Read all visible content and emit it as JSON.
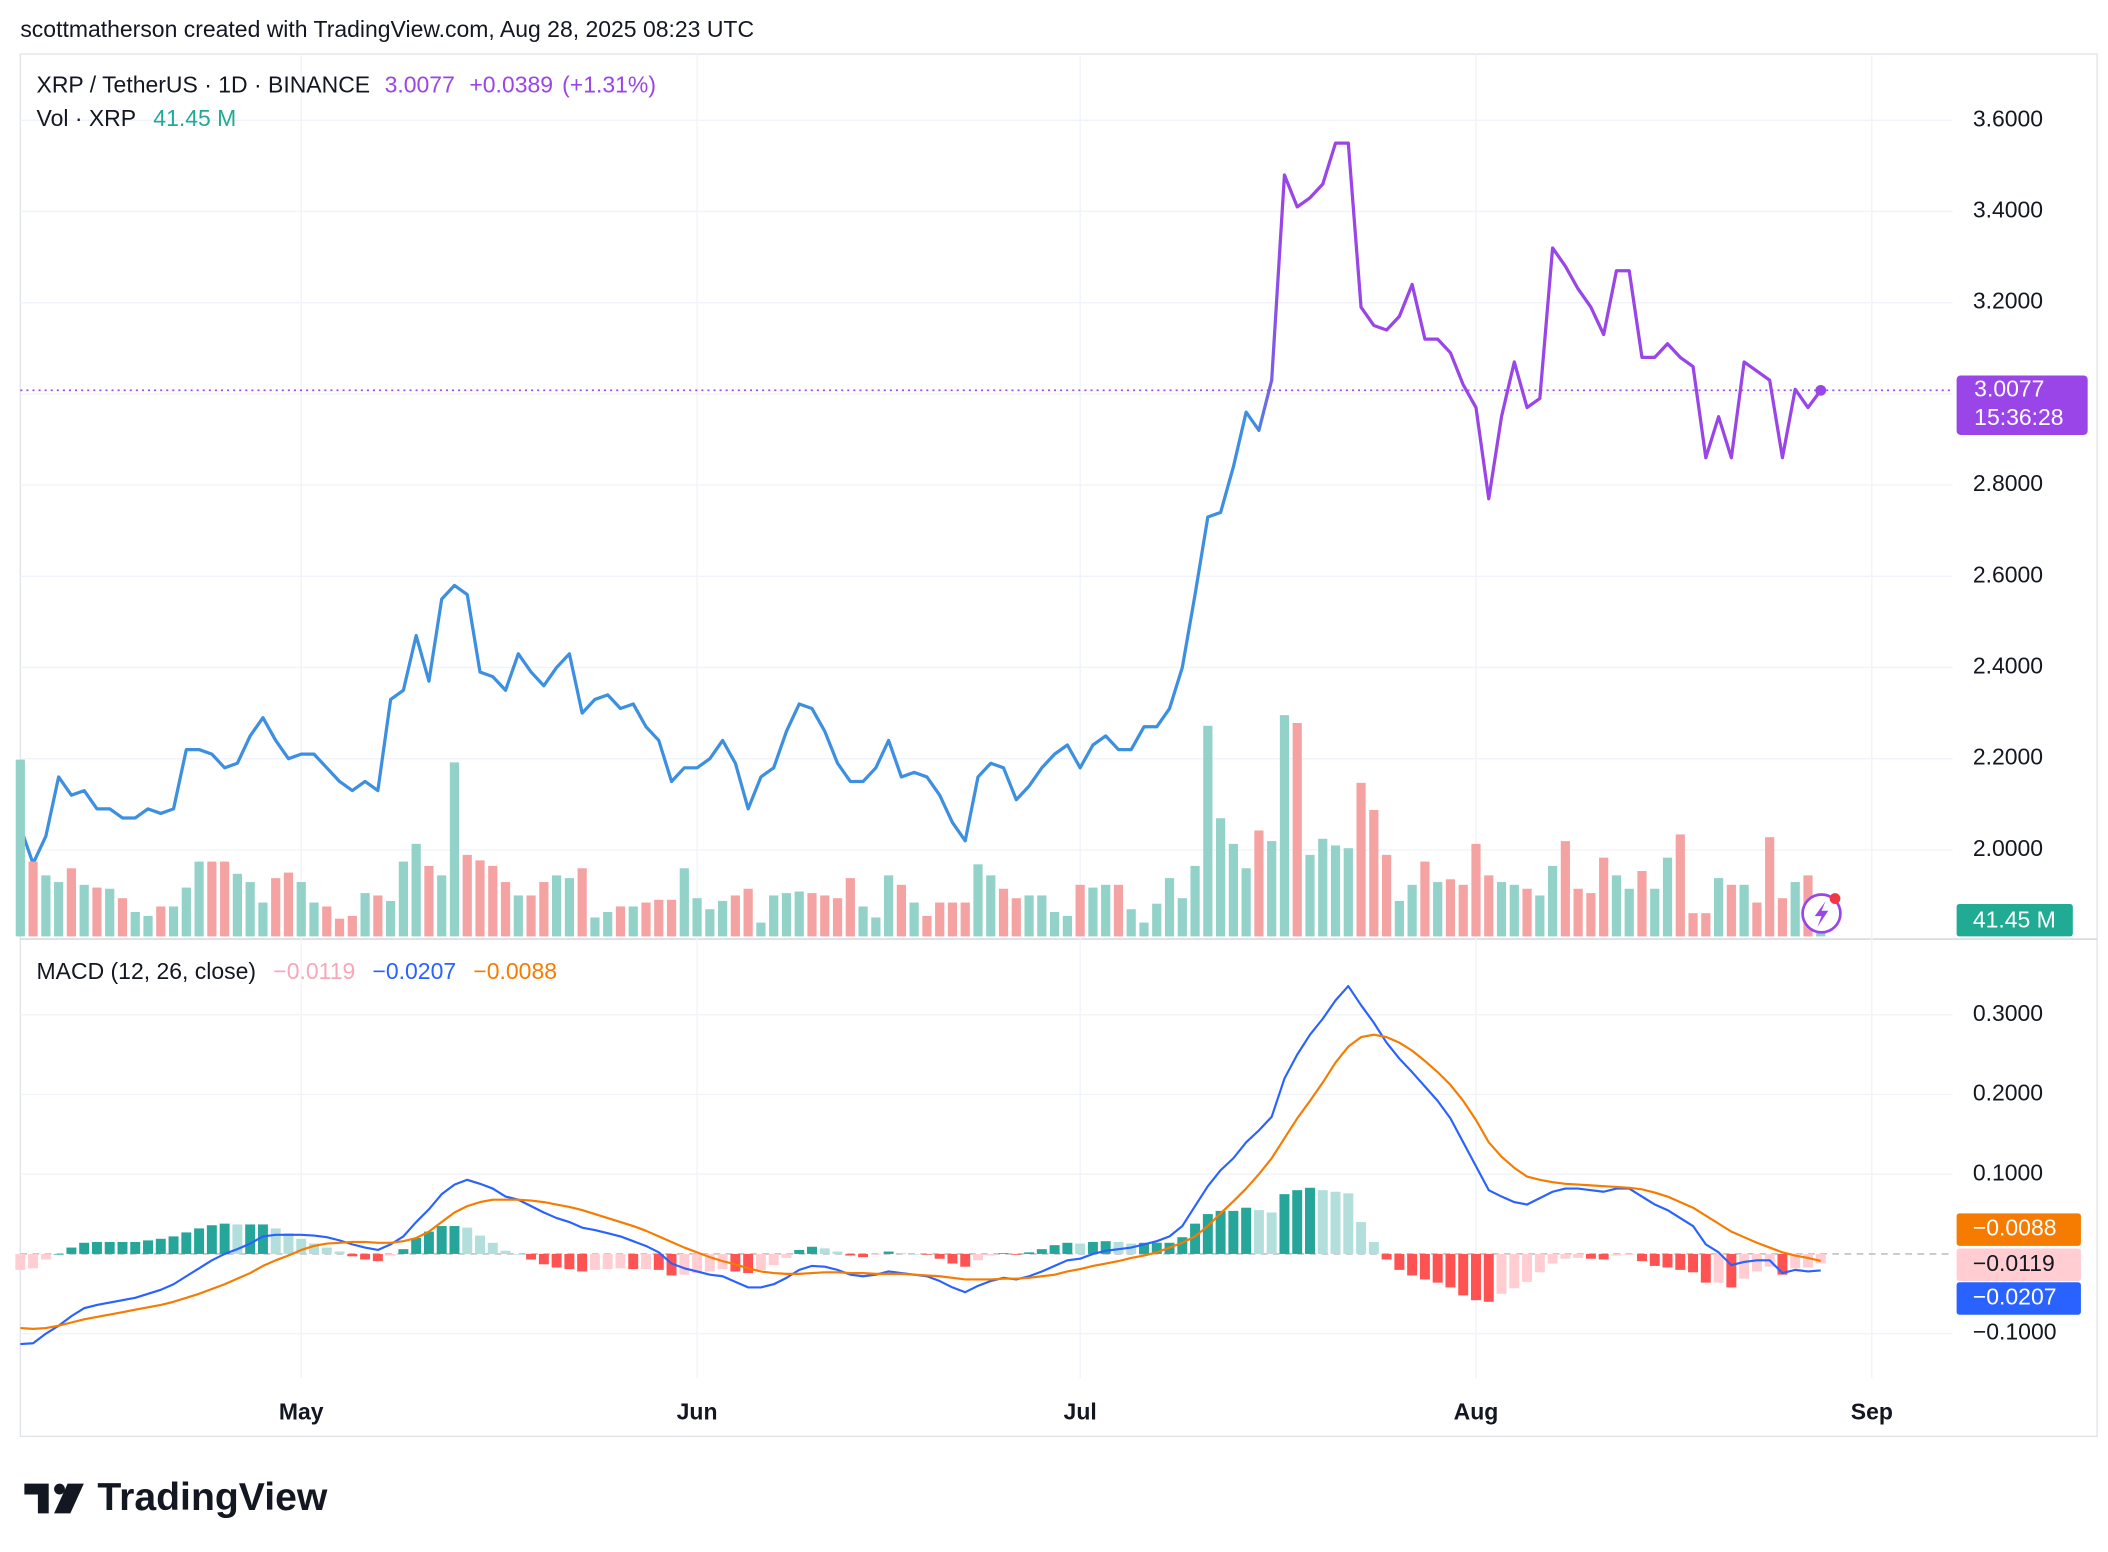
{
  "header": {
    "attribution": "scottmatherson created with TradingView.com, Aug 28, 2025 08:23 UTC"
  },
  "logo": "TradingView",
  "chart_data": [
    {
      "type": "line",
      "title": "XRP / TetherUS · 1D · BINANCE",
      "change": "+0.0389",
      "change_percent": "(+1.31%)",
      "countdown": "15:36:28",
      "color": [
        "#3d8fe0",
        "#9a45e8"
      ],
      "values": [
        2.05,
        1.97,
        2.03,
        2.16,
        2.12,
        2.13,
        2.09,
        2.09,
        2.07,
        2.07,
        2.09,
        2.08,
        2.09,
        2.22,
        2.22,
        2.21,
        2.18,
        2.19,
        2.25,
        2.29,
        2.24,
        2.2,
        2.21,
        2.21,
        2.18,
        2.15,
        2.13,
        2.15,
        2.13,
        2.33,
        2.35,
        2.47,
        2.37,
        2.55,
        2.58,
        2.56,
        2.39,
        2.38,
        2.35,
        2.43,
        2.39,
        2.36,
        2.4,
        2.43,
        2.3,
        2.33,
        2.34,
        2.31,
        2.32,
        2.27,
        2.24,
        2.15,
        2.18,
        2.18,
        2.2,
        2.24,
        2.19,
        2.09,
        2.16,
        2.18,
        2.26,
        2.32,
        2.31,
        2.26,
        2.19,
        2.15,
        2.15,
        2.18,
        2.24,
        2.16,
        2.17,
        2.16,
        2.12,
        2.06,
        2.02,
        2.16,
        2.19,
        2.18,
        2.11,
        2.14,
        2.18,
        2.21,
        2.23,
        2.18,
        2.23,
        2.25,
        2.22,
        2.22,
        2.27,
        2.27,
        2.31,
        2.4,
        2.56,
        2.73,
        2.74,
        2.84,
        2.96,
        2.92,
        3.03,
        3.48,
        3.41,
        3.43,
        3.46,
        3.55,
        3.55,
        3.19,
        3.15,
        3.14,
        3.17,
        3.24,
        3.12,
        3.12,
        3.09,
        3.02,
        2.97,
        2.77,
        2.95,
        3.07,
        2.97,
        2.99,
        3.32,
        3.28,
        3.23,
        3.19,
        3.13,
        3.27,
        3.27,
        3.08,
        3.08,
        3.11,
        3.08,
        3.06,
        2.86,
        2.95,
        2.86,
        3.07,
        3.05,
        3.03,
        2.86,
        3.01,
        2.97,
        3.0077,
        null,
        null,
        null,
        null
      ],
      "ylim": [
        1.8044,
        3.7452
      ],
      "yticks": [
        {
          "value": 2.0,
          "label": "2.0000"
        },
        {
          "value": 2.2,
          "label": "2.2000"
        },
        {
          "value": 2.4,
          "label": "2.4000"
        },
        {
          "value": 2.6,
          "label": "2.6000"
        },
        {
          "value": 2.8,
          "label": "2.8000"
        },
        {
          "value": 3.0,
          "label": "3.0000"
        },
        {
          "value": 3.2,
          "label": "3.2000"
        },
        {
          "value": 3.4,
          "label": "3.4000"
        },
        {
          "value": 3.6,
          "label": "3.6000"
        }
      ],
      "grid": true,
      "last_value_line": true
    },
    {
      "type": "bar",
      "title": "Vol · XRP",
      "last_value_label": "41.45 M",
      "colors": {
        "up": "#92d2c8",
        "down": "#f5a3a2"
      },
      "label_color": "#22ab94",
      "values": [
        449,
        190,
        155,
        138,
        173,
        131,
        124,
        121,
        97,
        62,
        52,
        76,
        76,
        124,
        190,
        190,
        190,
        159,
        138,
        86,
        148,
        162,
        138,
        86,
        76,
        45,
        52,
        110,
        104,
        90,
        190,
        235,
        179,
        155,
        442,
        207,
        193,
        179,
        138,
        104,
        104,
        138,
        155,
        148,
        173,
        48,
        62,
        76,
        76,
        86,
        93,
        93,
        173,
        97,
        69,
        90,
        104,
        121,
        35,
        104,
        110,
        114,
        110,
        104,
        97,
        148,
        76,
        48,
        155,
        131,
        86,
        52,
        86,
        86,
        86,
        183,
        155,
        121,
        97,
        104,
        104,
        62,
        52,
        131,
        124,
        131,
        131,
        69,
        35,
        83,
        148,
        97,
        179,
        535,
        300,
        235,
        173,
        269,
        242,
        562,
        542,
        207,
        248,
        231,
        224,
        390,
        321,
        207,
        90,
        131,
        190,
        138,
        145,
        131,
        235,
        155,
        138,
        131,
        121,
        104,
        179,
        242,
        121,
        110,
        200,
        155,
        121,
        166,
        121,
        200,
        259,
        59,
        59,
        148,
        131,
        131,
        86,
        252,
        97,
        138,
        155,
        41.45,
        null,
        null,
        null,
        null
      ]
    },
    {
      "type": "macd",
      "title": "MACD (12, 26, close)",
      "categories": [
        null,
        null,
        null,
        null,
        null,
        null,
        null,
        null,
        null,
        null,
        null,
        null,
        null,
        null,
        null,
        null,
        null,
        null,
        null,
        null,
        null,
        null,
        "May",
        null,
        null,
        null,
        null,
        null,
        null,
        null,
        null,
        null,
        null,
        null,
        null,
        null,
        null,
        null,
        null,
        null,
        null,
        null,
        null,
        null,
        null,
        null,
        null,
        null,
        null,
        null,
        null,
        null,
        null,
        "Jun",
        null,
        null,
        null,
        null,
        null,
        null,
        null,
        null,
        null,
        null,
        null,
        null,
        null,
        null,
        null,
        null,
        null,
        null,
        null,
        null,
        null,
        null,
        null,
        null,
        null,
        null,
        null,
        null,
        null,
        "Jul",
        null,
        null,
        null,
        null,
        null,
        null,
        null,
        null,
        null,
        null,
        null,
        null,
        null,
        null,
        null,
        null,
        null,
        null,
        null,
        null,
        null,
        null,
        null,
        null,
        null,
        null,
        null,
        null,
        null,
        null,
        "Aug",
        null,
        null,
        null,
        null,
        null,
        null,
        null,
        null,
        null,
        null,
        null,
        null,
        null,
        null,
        null,
        null,
        null,
        null,
        null,
        null,
        null,
        null,
        null,
        null,
        null,
        null,
        null,
        null,
        null,
        null,
        "Sep"
      ],
      "series": [
        {
          "type": "bar",
          "color": "#f7a8b8",
          "colors": [
            "#26a69a",
            "#b2dfdb",
            "#ffcdd2",
            "#ff5252"
          ],
          "last_value_label": "−0.0119",
          "values": [
            -0.02,
            -0.018,
            -0.007,
            0.0,
            0.008,
            0.014,
            0.015,
            0.015,
            0.015,
            0.015,
            0.017,
            0.019,
            0.022,
            0.027,
            0.032,
            0.036,
            0.038,
            0.037,
            0.037,
            0.037,
            0.032,
            0.026,
            0.019,
            0.013,
            0.008,
            0.003,
            -0.003,
            -0.007,
            -0.009,
            -0.002,
            0.006,
            0.02,
            0.028,
            0.035,
            0.035,
            0.033,
            0.023,
            0.014,
            0.004,
            0.0,
            -0.007,
            -0.013,
            -0.017,
            -0.019,
            -0.022,
            -0.02,
            -0.019,
            -0.018,
            -0.019,
            -0.019,
            -0.02,
            -0.027,
            -0.026,
            -0.024,
            -0.022,
            -0.019,
            -0.022,
            -0.024,
            -0.02,
            -0.014,
            -0.005,
            0.005,
            0.009,
            0.007,
            0.003,
            -0.002,
            -0.004,
            -0.001,
            0.003,
            0.001,
            0.0,
            -0.001,
            -0.006,
            -0.012,
            -0.016,
            -0.008,
            -0.002,
            0.001,
            -0.001,
            0.002,
            0.006,
            0.011,
            0.014,
            0.013,
            0.015,
            0.016,
            0.015,
            0.013,
            0.014,
            0.014,
            0.014,
            0.021,
            0.038,
            0.05,
            0.054,
            0.054,
            0.058,
            0.055,
            0.052,
            0.075,
            0.08,
            0.083,
            0.08,
            0.078,
            0.076,
            0.04,
            0.015,
            -0.007,
            -0.02,
            -0.027,
            -0.032,
            -0.036,
            -0.042,
            -0.052,
            -0.058,
            -0.06,
            -0.05,
            -0.043,
            -0.035,
            -0.023,
            -0.012,
            -0.006,
            -0.005,
            -0.006,
            -0.007,
            -0.002,
            -0.001,
            -0.009,
            -0.015,
            -0.017,
            -0.02,
            -0.023,
            -0.036,
            -0.036,
            -0.042,
            -0.031,
            -0.022,
            -0.016,
            -0.026,
            -0.018,
            -0.017,
            -0.0119,
            null,
            null,
            null,
            null
          ]
        },
        {
          "type": "line",
          "color": "#2962ff",
          "last_value_label": "−0.0207",
          "values": [
            -0.113,
            -0.112,
            -0.1,
            -0.09,
            -0.078,
            -0.068,
            -0.064,
            -0.061,
            -0.058,
            -0.055,
            -0.05,
            -0.045,
            -0.038,
            -0.028,
            -0.018,
            -0.008,
            0.0,
            0.006,
            0.013,
            0.022,
            0.024,
            0.024,
            0.024,
            0.023,
            0.021,
            0.017,
            0.012,
            0.008,
            0.005,
            0.012,
            0.022,
            0.04,
            0.056,
            0.075,
            0.087,
            0.093,
            0.088,
            0.082,
            0.072,
            0.068,
            0.06,
            0.052,
            0.045,
            0.04,
            0.033,
            0.03,
            0.026,
            0.022,
            0.016,
            0.01,
            0.002,
            -0.012,
            -0.018,
            -0.022,
            -0.026,
            -0.028,
            -0.035,
            -0.042,
            -0.042,
            -0.038,
            -0.03,
            -0.02,
            -0.015,
            -0.016,
            -0.02,
            -0.026,
            -0.028,
            -0.026,
            -0.022,
            -0.024,
            -0.026,
            -0.028,
            -0.034,
            -0.042,
            -0.048,
            -0.04,
            -0.034,
            -0.03,
            -0.032,
            -0.028,
            -0.022,
            -0.015,
            -0.008,
            -0.006,
            0.0,
            0.004,
            0.006,
            0.008,
            0.012,
            0.016,
            0.022,
            0.035,
            0.06,
            0.085,
            0.105,
            0.12,
            0.14,
            0.155,
            0.172,
            0.22,
            0.25,
            0.275,
            0.295,
            0.318,
            0.336,
            0.312,
            0.29,
            0.265,
            0.245,
            0.228,
            0.21,
            0.192,
            0.17,
            0.14,
            0.11,
            0.08,
            0.072,
            0.065,
            0.062,
            0.07,
            0.078,
            0.082,
            0.082,
            0.08,
            0.078,
            0.082,
            0.082,
            0.072,
            0.062,
            0.055,
            0.045,
            0.035,
            0.012,
            0.002,
            -0.014,
            -0.01,
            -0.008,
            -0.008,
            -0.024,
            -0.02,
            -0.022,
            -0.0207,
            null,
            null,
            null,
            null
          ]
        },
        {
          "type": "line",
          "color": "#f57c00",
          "last_value_label": "−0.0088",
          "values": [
            -0.093,
            -0.094,
            -0.093,
            -0.09,
            -0.086,
            -0.082,
            -0.079,
            -0.076,
            -0.073,
            -0.07,
            -0.067,
            -0.064,
            -0.06,
            -0.055,
            -0.05,
            -0.044,
            -0.038,
            -0.031,
            -0.024,
            -0.015,
            -0.008,
            -0.002,
            0.005,
            0.01,
            0.013,
            0.014,
            0.015,
            0.015,
            0.014,
            0.014,
            0.016,
            0.02,
            0.028,
            0.04,
            0.052,
            0.06,
            0.065,
            0.068,
            0.068,
            0.068,
            0.067,
            0.065,
            0.062,
            0.059,
            0.055,
            0.05,
            0.045,
            0.04,
            0.035,
            0.029,
            0.022,
            0.015,
            0.008,
            0.002,
            -0.004,
            -0.009,
            -0.013,
            -0.018,
            -0.022,
            -0.024,
            -0.025,
            -0.025,
            -0.024,
            -0.023,
            -0.023,
            -0.024,
            -0.024,
            -0.025,
            -0.025,
            -0.025,
            -0.026,
            -0.027,
            -0.028,
            -0.03,
            -0.032,
            -0.032,
            -0.032,
            -0.031,
            -0.031,
            -0.03,
            -0.028,
            -0.026,
            -0.022,
            -0.019,
            -0.015,
            -0.012,
            -0.009,
            -0.005,
            -0.002,
            0.002,
            0.008,
            0.014,
            0.022,
            0.035,
            0.051,
            0.066,
            0.082,
            0.1,
            0.12,
            0.145,
            0.17,
            0.192,
            0.215,
            0.24,
            0.26,
            0.272,
            0.275,
            0.272,
            0.265,
            0.255,
            0.242,
            0.228,
            0.212,
            0.192,
            0.168,
            0.14,
            0.122,
            0.108,
            0.097,
            0.093,
            0.09,
            0.088,
            0.087,
            0.086,
            0.085,
            0.084,
            0.083,
            0.081,
            0.077,
            0.072,
            0.065,
            0.058,
            0.048,
            0.038,
            0.028,
            0.021,
            0.014,
            0.008,
            0.002,
            -0.002,
            -0.005,
            -0.0088,
            null,
            null,
            null,
            null
          ]
        }
      ],
      "ylim": [
        -0.1559,
        0.3949
      ],
      "yticks": [
        {
          "value": -0.1,
          "label": "−0.1000"
        },
        {
          "value": 0.1,
          "label": "0.1000"
        },
        {
          "value": 0.2,
          "label": "0.2000"
        },
        {
          "value": 0.3,
          "label": "0.3000"
        }
      ],
      "grid": true
    }
  ]
}
